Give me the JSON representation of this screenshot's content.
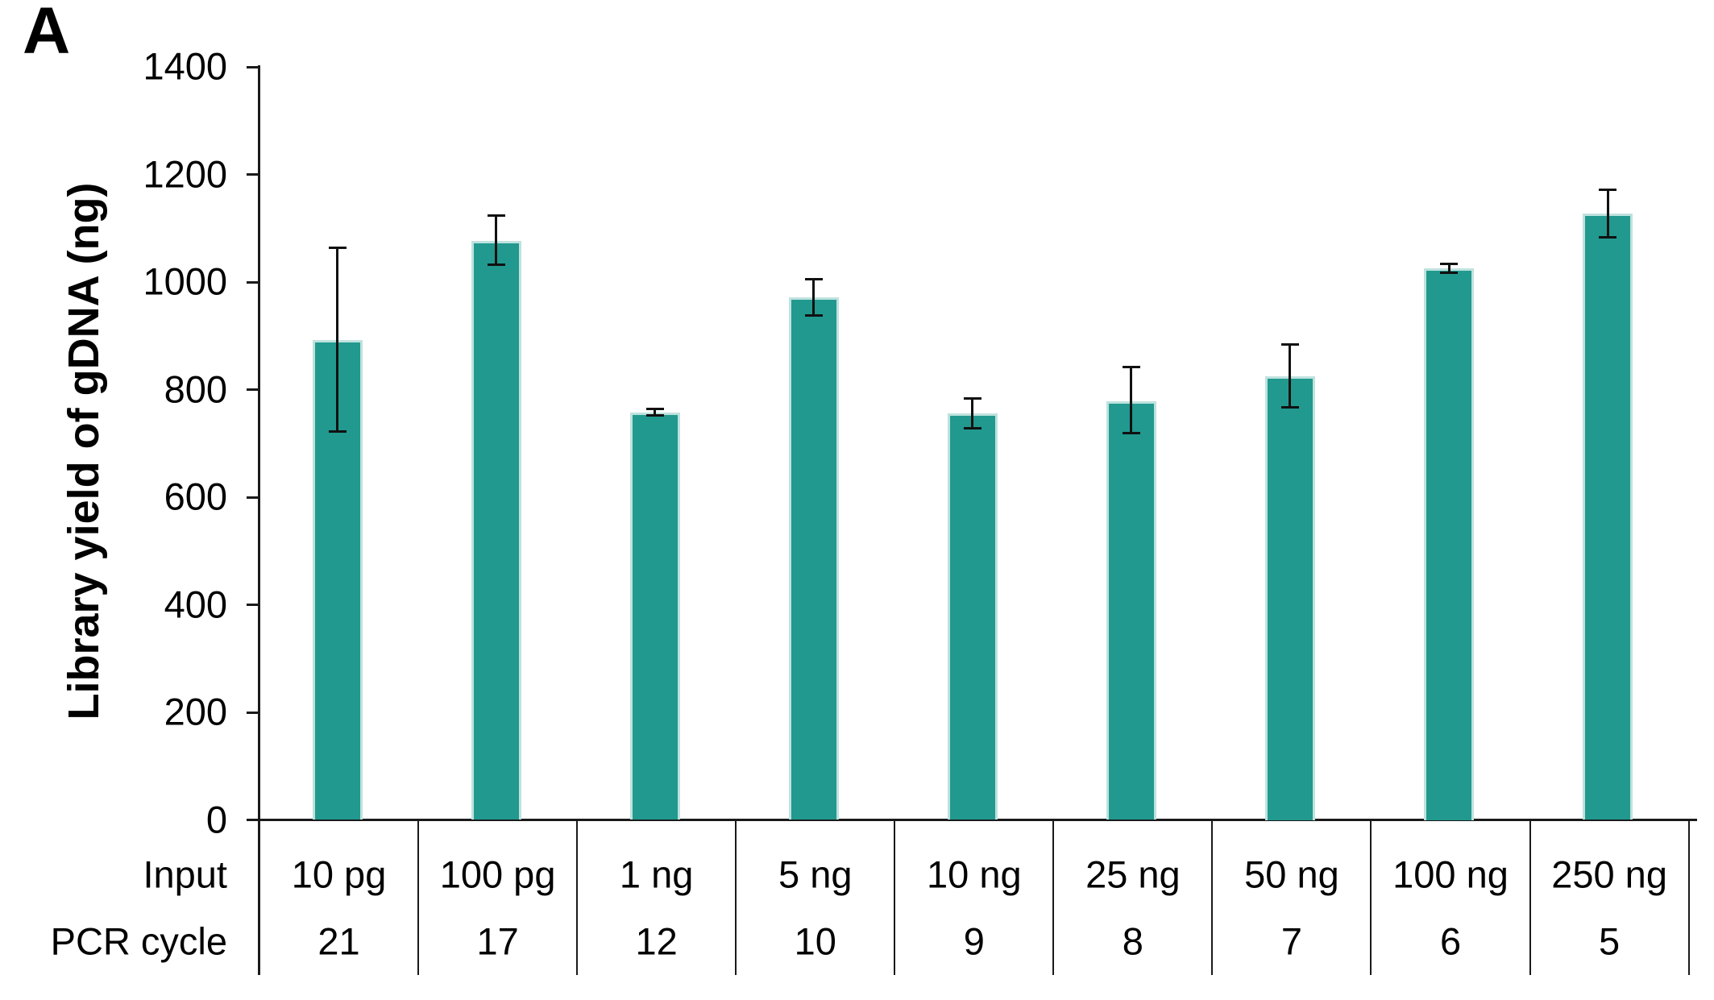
{
  "panel_label": "A",
  "chart_data": {
    "type": "bar",
    "title": "",
    "ylabel": "Library yield of gDNA (ng)",
    "xlabel": "",
    "ylim": [
      0,
      1400
    ],
    "yticks": [
      0,
      200,
      400,
      600,
      800,
      1000,
      1200,
      1400
    ],
    "grid": false,
    "legend": false,
    "bar_color": "#21998f",
    "error_bar_color": "#111111",
    "row_headers": {
      "input": "Input",
      "pcr_cycle": "PCR cycle"
    },
    "categories": [
      "10 pg",
      "100 pg",
      "1 ng",
      "5 ng",
      "10 ng",
      "25 ng",
      "50 ng",
      "100 ng",
      "250 ng"
    ],
    "pcr_cycles": [
      "21",
      "17",
      "12",
      "10",
      "9",
      "8",
      "7",
      "6",
      "5"
    ],
    "series": [
      {
        "name": "Library yield of gDNA (ng)",
        "values": [
          892,
          1077,
          758,
          971,
          756,
          779,
          825,
          1025,
          1127
        ],
        "error_plus": [
          172,
          47,
          7,
          35,
          29,
          64,
          60,
          9,
          45
        ],
        "error_minus": [
          171,
          46,
          7,
          34,
          28,
          61,
          59,
          9,
          45
        ]
      }
    ]
  }
}
